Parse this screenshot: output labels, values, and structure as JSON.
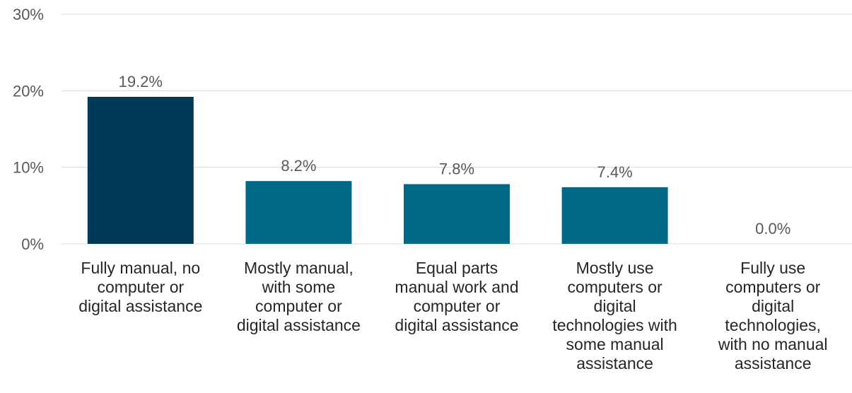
{
  "chart_data": {
    "type": "bar",
    "categories": [
      "Fully manual, no\ncomputer or\ndigital assistance",
      "Mostly manual,\nwith some\ncomputer or\ndigital assistance",
      "Equal parts\nmanual work and\ncomputer or\ndigital assistance",
      "Mostly use\ncomputers or\ndigital\ntechnologies with\nsome manual\nassistance",
      "Fully use\ncomputers or\ndigital\ntechnologies,\nwith no manual\nassistance"
    ],
    "values": [
      19.2,
      8.2,
      7.8,
      7.4,
      0.0
    ],
    "data_labels": [
      "19.2%",
      "8.2%",
      "7.8%",
      "7.4%",
      "0.0%"
    ],
    "y_ticks": [
      "0%",
      "10%",
      "20%",
      "30%"
    ],
    "ylim": [
      0,
      30
    ],
    "grid": true,
    "colors": [
      "#003a57",
      "#006a86",
      "#006a86",
      "#006a86",
      "#006a86"
    ],
    "title": "",
    "xlabel": "",
    "ylabel": ""
  }
}
